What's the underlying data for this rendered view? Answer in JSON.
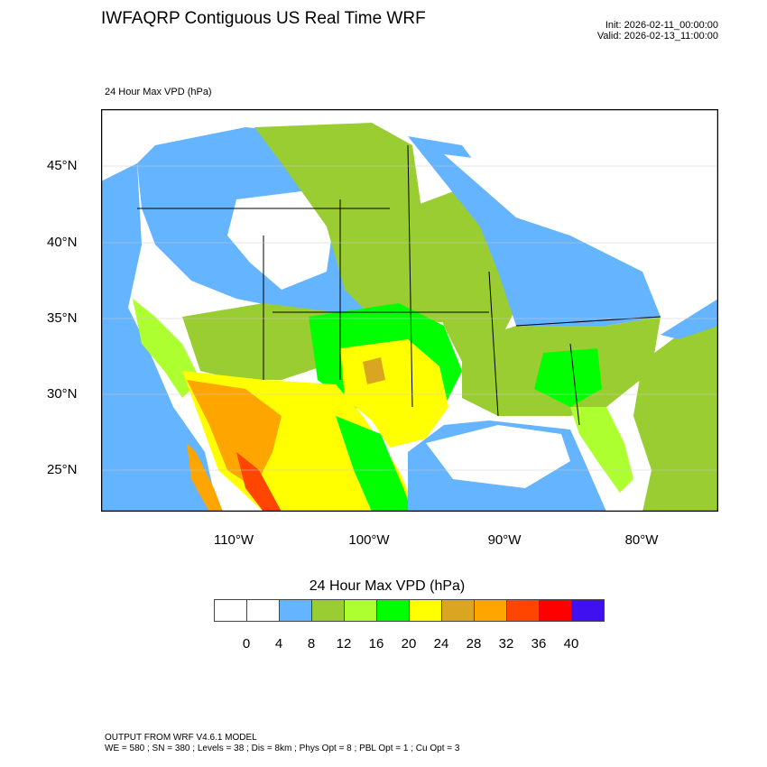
{
  "header": {
    "title": "IWFAQRP Contiguous US Real Time WRF",
    "init": "Init: 2026-02-11_00:00:00",
    "valid": "Valid: 2026-02-13_11:00:00",
    "subtitle": "24 Hour Max VPD   (hPa)"
  },
  "map": {
    "lat_labels": [
      "45°N",
      "40°N",
      "35°N",
      "30°N",
      "25°N"
    ],
    "lon_labels": [
      "110°W",
      "100°W",
      "90°W",
      "80°W"
    ]
  },
  "colorbar": {
    "title": "24 Hour Max VPD  (hPa)",
    "colors": [
      "#ffffff",
      "#ffffff",
      "#64b4ff",
      "#9acd32",
      "#adff2f",
      "#00ff00",
      "#ffff00",
      "#daa520",
      "#ffa500",
      "#ff4500",
      "#ff0000",
      "#4010f0"
    ],
    "labels": [
      "0",
      "4",
      "8",
      "12",
      "16",
      "20",
      "24",
      "28",
      "32",
      "36",
      "40"
    ]
  },
  "footer": {
    "line1": "OUTPUT FROM WRF V4.6.1 MODEL",
    "line2": "WE = 580 ; SN = 380 ; Levels = 38 ; Dis = 8km ; Phys Opt = 8 ; PBL Opt = 1 ; Cu Opt = 3"
  }
}
